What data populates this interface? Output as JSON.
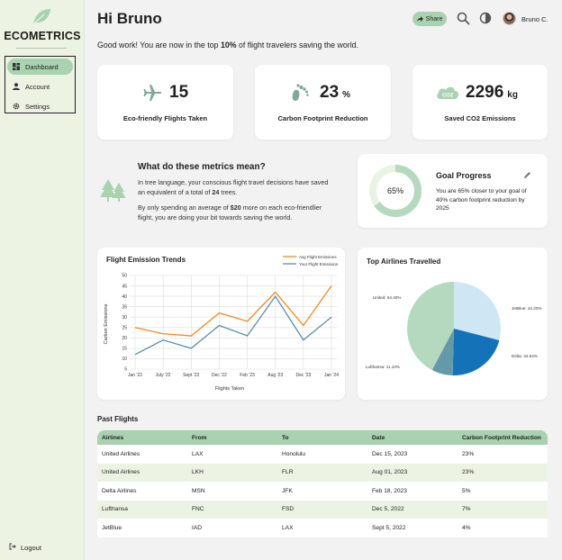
{
  "sidebar": {
    "brand": "ECOMETRICS",
    "items": [
      {
        "label": "Dashboard",
        "icon": "dashboard-icon",
        "active": true
      },
      {
        "label": "Account",
        "icon": "user-icon",
        "active": false
      },
      {
        "label": "Settings",
        "icon": "gear-icon",
        "active": false
      }
    ],
    "logout": "Logout"
  },
  "header": {
    "greeting": "Hi Bruno",
    "sub_pre": "Good work! You are now in the top ",
    "sub_pct": "10%",
    "sub_post": " of flight travelers saving the world.",
    "share_label": "Share",
    "user_name": "Bruno C."
  },
  "metrics": [
    {
      "value": "15",
      "unit": "",
      "label": "Eco-friendly Flights Taken",
      "icon": "plane-icon"
    },
    {
      "value": "23",
      "unit": "%",
      "label": "Carbon Footprint Reduction",
      "icon": "footprint-icon"
    },
    {
      "value": "2296",
      "unit": "kg",
      "label": "Saved CO2 Emissions",
      "icon": "co2-cloud-icon"
    }
  ],
  "meaning": {
    "title": "What do these metrics mean?",
    "p1_pre": "In tree language, your conscious flight travel decisions have saved an equivalent of a total of ",
    "p1_bold": "24",
    "p1_post": " trees.",
    "p2_pre": "By only spending an average of ",
    "p2_bold": "$20",
    "p2_post": " more on each eco-friendlier flight, you are doing your bit towards saving the world."
  },
  "goal": {
    "title": "Goal Progress",
    "percent_label": "65%",
    "progress": 0.65,
    "text": "You are 65% closer to your goal of 40% carbon footprint reduction by 2025"
  },
  "colors": {
    "accent": "#a8d2b0",
    "avg_line": "#f08a24",
    "your_line": "#5a8fa6",
    "pie_light_green": "#b4d9bf",
    "pie_light_blue": "#cfe7f5",
    "pie_blue": "#1473b8",
    "pie_teal": "#6699a8"
  },
  "chart_data": [
    {
      "type": "line",
      "title": "Flight Emission Trends",
      "xlabel": "Flights Taken",
      "ylabel": "Carbon Emissions",
      "categories": [
        "Jan '22",
        "July '22",
        "Sept '22",
        "Dec '22",
        "Feb '23",
        "Aug '23",
        "Dec '23",
        "Jan '24"
      ],
      "series": [
        {
          "name": "Avg Flight Emissions",
          "values": [
            25,
            22,
            21,
            32,
            28,
            42,
            26,
            45
          ]
        },
        {
          "name": "Your Flight Emissions",
          "values": [
            12,
            19,
            15,
            26,
            21,
            40,
            19,
            30
          ]
        }
      ],
      "ylim": [
        5,
        50
      ],
      "yticks": [
        5,
        10,
        15,
        20,
        25,
        30,
        35,
        40,
        45,
        50
      ],
      "grid": true,
      "legend": "top-right"
    },
    {
      "type": "pie",
      "title": "Top Airlines Travelled",
      "slices": [
        {
          "label": "JetBlue: 44.20%",
          "value": 44.2
        },
        {
          "label": "Delta: 32.64%",
          "value": 32.64
        },
        {
          "label": "Lufthansa: 11.10%",
          "value": 11.1
        },
        {
          "label": "United: 64.40%",
          "value": 64.4
        }
      ]
    }
  ],
  "past_flights": {
    "title": "Past Flights",
    "columns": [
      "Airlines",
      "From",
      "To",
      "Date",
      "Carbon Footprint Reduction"
    ],
    "rows": [
      [
        "United Airlines",
        "LAX",
        "Honolulu",
        "Dec 15, 2023",
        "23%"
      ],
      [
        "United Airlines",
        "LKH",
        "FLR",
        "Aug 01, 2023",
        "23%"
      ],
      [
        "Delta Airlines",
        "MSN",
        "JFK",
        "Feb 18, 2023",
        "5%"
      ],
      [
        "Lufthansa",
        "FNC",
        "FSD",
        "Dec 5, 2022",
        "7%"
      ],
      [
        "JetBlue",
        "IAD",
        "LAX",
        "Sept 5, 2022",
        "4%"
      ]
    ]
  }
}
